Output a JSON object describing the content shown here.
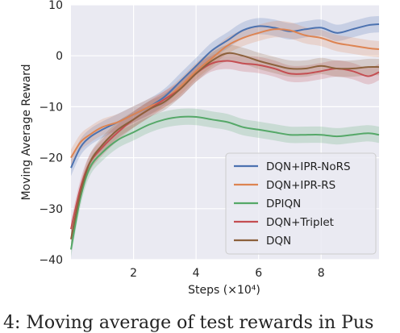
{
  "chart_data": {
    "type": "line",
    "title": "",
    "xlabel": "Steps (×10⁴)",
    "ylabel": "Moving Average Reward",
    "xlim": [
      0,
      9.85
    ],
    "ylim": [
      -40,
      10
    ],
    "xticks": [
      2,
      4,
      6,
      8
    ],
    "yticks": [
      -40,
      -30,
      -20,
      -10,
      0,
      10
    ],
    "grid": true,
    "background": "#eaeaf2",
    "legend": "bottom-right",
    "series": [
      {
        "name": "DQN+IPR-NoRS",
        "color": "#4c72b0",
        "x": [
          0,
          0.3,
          0.6,
          1.0,
          1.5,
          2.0,
          2.5,
          3.0,
          3.5,
          4.0,
          4.5,
          5.0,
          5.5,
          6.0,
          6.5,
          7.0,
          7.5,
          8.0,
          8.5,
          9.0,
          9.5,
          9.85
        ],
        "y": [
          -22,
          -18,
          -16,
          -14.5,
          -13,
          -11.5,
          -10,
          -8,
          -5,
          -2,
          1,
          3,
          5,
          5.8,
          5.5,
          4.8,
          5.2,
          5.5,
          4.5,
          5.2,
          6,
          6.2
        ]
      },
      {
        "name": "DQN+IPR-RS",
        "color": "#dd8452",
        "x": [
          0,
          0.3,
          0.6,
          1.0,
          1.5,
          2.0,
          2.5,
          3.0,
          3.5,
          4.0,
          4.5,
          5.0,
          5.5,
          6.0,
          6.5,
          7.0,
          7.5,
          8.0,
          8.5,
          9.0,
          9.5,
          9.85
        ],
        "y": [
          -20,
          -17,
          -15.5,
          -14,
          -13,
          -11.5,
          -10,
          -8.5,
          -6,
          -3,
          -0.5,
          2,
          3.5,
          4.5,
          5.2,
          5,
          4,
          3.5,
          2.5,
          2,
          1.5,
          1.3
        ]
      },
      {
        "name": "DPIQN",
        "color": "#55a868",
        "x": [
          0,
          0.3,
          0.6,
          1.0,
          1.5,
          2.0,
          2.5,
          3.0,
          3.5,
          4.0,
          4.5,
          5.0,
          5.5,
          6.0,
          6.5,
          7.0,
          7.5,
          8.0,
          8.5,
          9.0,
          9.5,
          9.85
        ],
        "y": [
          -38,
          -28,
          -22,
          -19,
          -16.5,
          -15,
          -13.5,
          -12.5,
          -12,
          -12,
          -12.5,
          -13,
          -14,
          -14.5,
          -15,
          -15.5,
          -15.5,
          -15.5,
          -15.8,
          -15.5,
          -15.2,
          -15.5
        ]
      },
      {
        "name": "DQN+Triplet",
        "color": "#c44e52",
        "x": [
          0,
          0.3,
          0.6,
          1.0,
          1.5,
          2.0,
          2.5,
          3.0,
          3.5,
          4.0,
          4.5,
          5.0,
          5.5,
          6.0,
          6.5,
          7.0,
          7.5,
          8.0,
          8.5,
          9.0,
          9.5,
          9.85
        ],
        "y": [
          -34,
          -26,
          -21,
          -18,
          -15,
          -12.5,
          -10.5,
          -8.5,
          -6.5,
          -3.5,
          -1.5,
          -1,
          -1.5,
          -1.8,
          -2.5,
          -3.5,
          -3.5,
          -3,
          -2.5,
          -3,
          -4,
          -3.2
        ]
      },
      {
        "name": "DQN",
        "color": "#8c613c",
        "x": [
          0,
          0.3,
          0.6,
          1.0,
          1.5,
          2.0,
          2.5,
          3.0,
          3.5,
          4.0,
          4.5,
          5.0,
          5.5,
          6.0,
          6.5,
          7.0,
          7.5,
          8.0,
          8.5,
          9.0,
          9.5,
          9.85
        ],
        "y": [
          -36,
          -27,
          -21,
          -17.5,
          -14.5,
          -12.5,
          -10.5,
          -9,
          -6.5,
          -3.5,
          -1,
          0.5,
          0,
          -1,
          -1.8,
          -2.5,
          -2.5,
          -2,
          -2.5,
          -2.5,
          -2.2,
          -2.2
        ]
      }
    ]
  },
  "caption": "4: Moving average of test rewards in Pus"
}
